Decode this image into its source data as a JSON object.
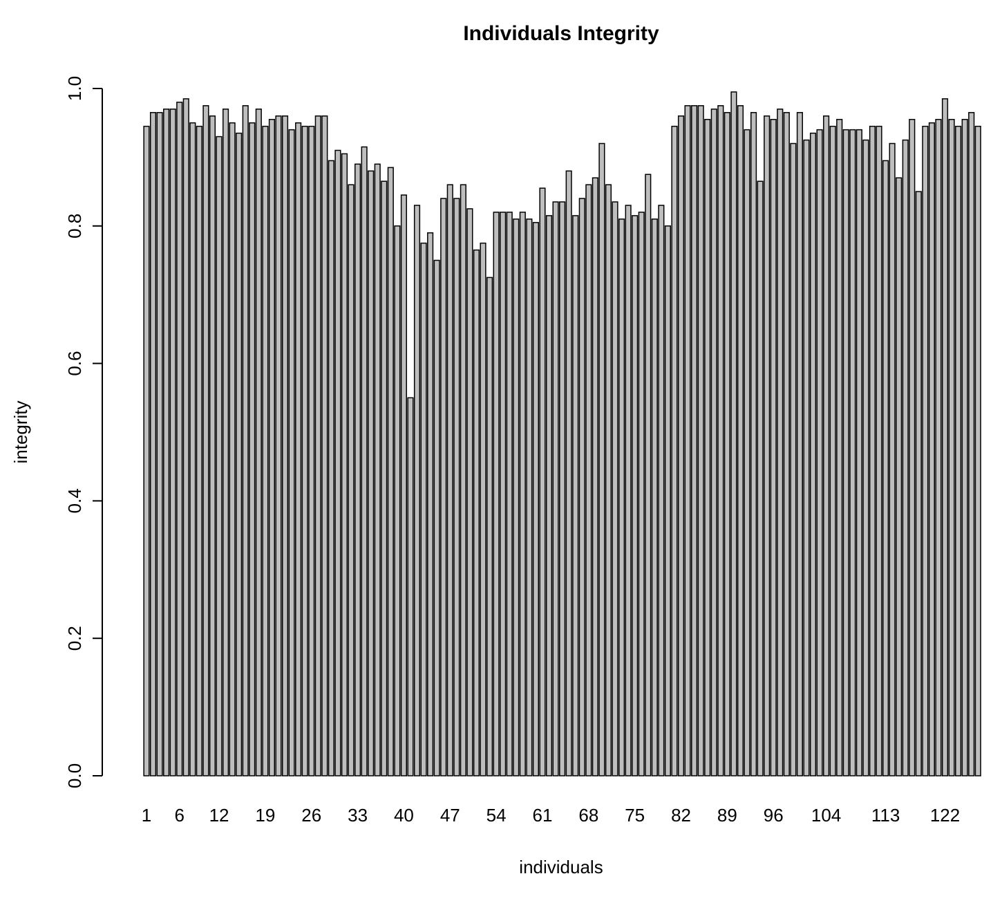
{
  "chart_data": {
    "type": "bar",
    "title": "Individuals Integrity",
    "x_label": "individuals",
    "y_label": "integrity",
    "categories": [
      "1",
      null,
      null,
      null,
      null,
      "6",
      null,
      null,
      null,
      null,
      null,
      "12",
      null,
      null,
      null,
      null,
      null,
      null,
      "19",
      null,
      null,
      null,
      null,
      null,
      null,
      "26",
      null,
      null,
      null,
      null,
      null,
      null,
      "33",
      null,
      null,
      null,
      null,
      null,
      null,
      "40",
      null,
      null,
      null,
      null,
      null,
      null,
      "47",
      null,
      null,
      null,
      null,
      null,
      null,
      "54",
      null,
      null,
      null,
      null,
      null,
      null,
      "61",
      null,
      null,
      null,
      null,
      null,
      null,
      "68",
      null,
      null,
      null,
      null,
      null,
      null,
      "75",
      null,
      null,
      null,
      null,
      null,
      null,
      "82",
      null,
      null,
      null,
      null,
      null,
      null,
      "89",
      null,
      null,
      null,
      null,
      null,
      null,
      "96",
      null,
      null,
      null,
      null,
      null,
      null,
      null,
      "104",
      null,
      null,
      null,
      null,
      null,
      null,
      null,
      null,
      "113",
      null,
      null,
      null,
      null,
      null,
      null,
      null,
      null,
      "122",
      null,
      null,
      null,
      null,
      null
    ],
    "values": [
      0.945,
      0.965,
      0.965,
      0.97,
      0.97,
      0.98,
      0.985,
      0.95,
      0.945,
      0.975,
      0.96,
      0.93,
      0.97,
      0.95,
      0.935,
      0.975,
      0.95,
      0.97,
      0.945,
      0.955,
      0.96,
      0.96,
      0.94,
      0.95,
      0.945,
      0.945,
      0.96,
      0.96,
      0.895,
      0.91,
      0.905,
      0.86,
      0.89,
      0.915,
      0.88,
      0.89,
      0.865,
      0.885,
      0.8,
      0.845,
      0.55,
      0.83,
      0.775,
      0.79,
      0.75,
      0.84,
      0.86,
      0.84,
      0.86,
      0.825,
      0.765,
      0.775,
      0.725,
      0.82,
      0.82,
      0.82,
      0.81,
      0.82,
      0.81,
      0.805,
      0.855,
      0.815,
      0.835,
      0.835,
      0.88,
      0.815,
      0.84,
      0.86,
      0.87,
      0.92,
      0.86,
      0.835,
      0.81,
      0.83,
      0.815,
      0.82,
      0.875,
      0.81,
      0.83,
      0.8,
      0.945,
      0.96,
      0.975,
      0.975,
      0.975,
      0.955,
      0.97,
      0.975,
      0.965,
      0.995,
      0.975,
      0.94,
      0.965,
      0.865,
      0.96,
      0.955,
      0.97,
      0.965,
      0.92,
      0.965,
      0.925,
      0.935,
      0.94,
      0.96,
      0.945,
      0.955,
      0.94,
      0.94,
      0.94,
      0.925,
      0.945,
      0.945,
      0.895,
      0.92,
      0.87,
      0.925,
      0.955,
      0.85,
      0.945,
      0.95,
      0.955,
      0.985,
      0.955,
      0.945,
      0.955,
      0.965,
      0.945
    ],
    "color": "#bebebe",
    "ylim": [
      0,
      1
    ],
    "yticks": [
      {
        "value": 0,
        "label": "0.0"
      },
      0.2,
      0.4,
      0.6,
      0.8,
      {
        "value": 1,
        "label": "1.0"
      }
    ]
  }
}
